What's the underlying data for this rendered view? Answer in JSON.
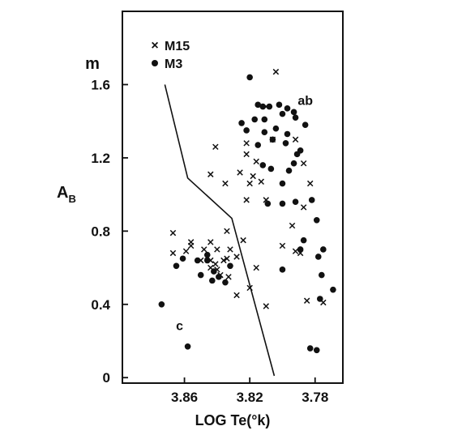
{
  "chart_data": {
    "type": "scatter",
    "title": "",
    "xlabel": "LOG Te(°k)",
    "ylabel": "AB",
    "ylabel_unit": "m",
    "x_reversed": true,
    "xlim": [
      3.898,
      3.763
    ],
    "ylim": [
      -0.03,
      2.0
    ],
    "xticks": [
      "3.86",
      "3.82",
      "3.78"
    ],
    "xtick_values": [
      3.86,
      3.82,
      3.78
    ],
    "yticks": [
      "0",
      "0.4",
      "0.8",
      "1.2",
      "1.6"
    ],
    "ytick_values": [
      0,
      0.4,
      0.8,
      1.2,
      1.6
    ],
    "grid": false,
    "legend_position": "top-left",
    "legend": [
      {
        "marker": "cross",
        "label": "M15"
      },
      {
        "marker": "dot",
        "label": "M3"
      }
    ],
    "annotations": [
      {
        "text": "ab",
        "x": 3.786,
        "y": 1.49
      },
      {
        "text": "c",
        "x": 3.863,
        "y": 0.26
      }
    ],
    "series": [
      {
        "name": "M15",
        "marker": "cross",
        "points": [
          [
            3.804,
            1.67
          ],
          [
            3.806,
            1.3
          ],
          [
            3.81,
            1.48
          ],
          [
            3.792,
            1.3
          ],
          [
            3.822,
            1.28
          ],
          [
            3.816,
            1.18
          ],
          [
            3.822,
            1.22
          ],
          [
            3.818,
            1.1
          ],
          [
            3.787,
            1.17
          ],
          [
            3.813,
            1.07
          ],
          [
            3.82,
            1.06
          ],
          [
            3.841,
            1.26
          ],
          [
            3.844,
            1.11
          ],
          [
            3.826,
            1.12
          ],
          [
            3.783,
            1.06
          ],
          [
            3.835,
            1.06
          ],
          [
            3.81,
            0.97
          ],
          [
            3.822,
            0.97
          ],
          [
            3.787,
            0.93
          ],
          [
            3.794,
            0.83
          ],
          [
            3.867,
            0.79
          ],
          [
            3.834,
            0.8
          ],
          [
            3.867,
            0.68
          ],
          [
            3.859,
            0.69
          ],
          [
            3.856,
            0.74
          ],
          [
            3.856,
            0.72
          ],
          [
            3.848,
            0.7
          ],
          [
            3.85,
            0.64
          ],
          [
            3.846,
            0.66
          ],
          [
            3.844,
            0.64
          ],
          [
            3.844,
            0.74
          ],
          [
            3.84,
            0.7
          ],
          [
            3.841,
            0.62
          ],
          [
            3.836,
            0.64
          ],
          [
            3.834,
            0.65
          ],
          [
            3.832,
            0.7
          ],
          [
            3.84,
            0.59
          ],
          [
            3.844,
            0.6
          ],
          [
            3.833,
            0.55
          ],
          [
            3.838,
            0.56
          ],
          [
            3.828,
            0.66
          ],
          [
            3.824,
            0.75
          ],
          [
            3.816,
            0.6
          ],
          [
            3.82,
            0.49
          ],
          [
            3.828,
            0.45
          ],
          [
            3.81,
            0.39
          ],
          [
            3.785,
            0.42
          ],
          [
            3.775,
            0.41
          ],
          [
            3.789,
            0.68
          ],
          [
            3.8,
            0.72
          ],
          [
            3.792,
            0.69
          ]
        ]
      },
      {
        "name": "M3",
        "marker": "dot",
        "points": [
          [
            3.82,
            1.64
          ],
          [
            3.815,
            1.49
          ],
          [
            3.812,
            1.48
          ],
          [
            3.808,
            1.48
          ],
          [
            3.802,
            1.49
          ],
          [
            3.797,
            1.47
          ],
          [
            3.793,
            1.45
          ],
          [
            3.817,
            1.41
          ],
          [
            3.825,
            1.39
          ],
          [
            3.811,
            1.41
          ],
          [
            3.8,
            1.44
          ],
          [
            3.792,
            1.42
          ],
          [
            3.822,
            1.35
          ],
          [
            3.811,
            1.34
          ],
          [
            3.804,
            1.36
          ],
          [
            3.797,
            1.33
          ],
          [
            3.786,
            1.38
          ],
          [
            3.815,
            1.27
          ],
          [
            3.806,
            1.3
          ],
          [
            3.798,
            1.28
          ],
          [
            3.791,
            1.22
          ],
          [
            3.793,
            1.17
          ],
          [
            3.789,
            1.24
          ],
          [
            3.812,
            1.16
          ],
          [
            3.807,
            1.14
          ],
          [
            3.796,
            1.13
          ],
          [
            3.8,
            1.06
          ],
          [
            3.809,
            0.95
          ],
          [
            3.792,
            0.96
          ],
          [
            3.8,
            0.95
          ],
          [
            3.782,
            0.97
          ],
          [
            3.779,
            0.86
          ],
          [
            3.775,
            0.7
          ],
          [
            3.778,
            0.66
          ],
          [
            3.787,
            0.75
          ],
          [
            3.789,
            0.7
          ],
          [
            3.852,
            0.64
          ],
          [
            3.861,
            0.65
          ],
          [
            3.865,
            0.61
          ],
          [
            3.846,
            0.67
          ],
          [
            3.846,
            0.64
          ],
          [
            3.842,
            0.58
          ],
          [
            3.843,
            0.53
          ],
          [
            3.839,
            0.55
          ],
          [
            3.835,
            0.52
          ],
          [
            3.85,
            0.56
          ],
          [
            3.832,
            0.61
          ],
          [
            3.8,
            0.59
          ],
          [
            3.776,
            0.56
          ],
          [
            3.777,
            0.43
          ],
          [
            3.769,
            0.48
          ],
          [
            3.874,
            0.4
          ],
          [
            3.858,
            0.17
          ],
          [
            3.783,
            0.16
          ],
          [
            3.779,
            0.15
          ]
        ]
      }
    ],
    "boundary_line": {
      "points": [
        [
          3.872,
          1.6
        ],
        [
          3.858,
          1.09
        ],
        [
          3.831,
          0.87
        ],
        [
          3.805,
          0.01
        ]
      ]
    }
  }
}
